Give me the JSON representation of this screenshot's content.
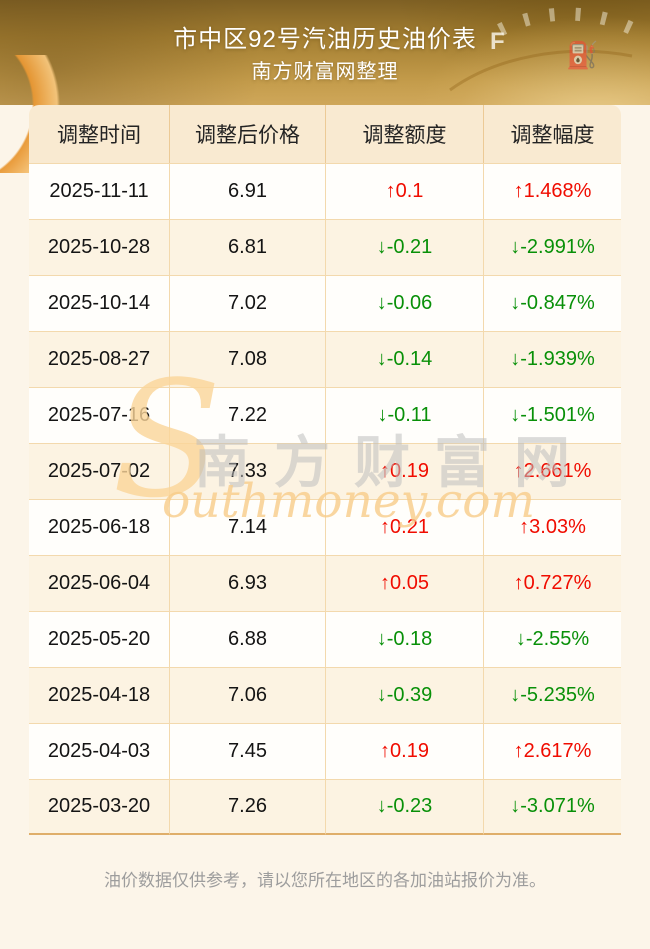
{
  "hero": {
    "title_line1": "市中区92号汽油历史油价表",
    "title_line2": "南方财富网整理",
    "gauge_letter": "F",
    "pump_icon": "⛽"
  },
  "table": {
    "columns": [
      "调整时间",
      "调整后价格",
      "调整额度",
      "调整幅度"
    ],
    "rows": [
      {
        "date": "2025-11-11",
        "price": "6.91",
        "change": "↑0.1",
        "pct": "↑1.468%",
        "direction": "up"
      },
      {
        "date": "2025-10-28",
        "price": "6.81",
        "change": "↓-0.21",
        "pct": "↓-2.991%",
        "direction": "down"
      },
      {
        "date": "2025-10-14",
        "price": "7.02",
        "change": "↓-0.06",
        "pct": "↓-0.847%",
        "direction": "down"
      },
      {
        "date": "2025-08-27",
        "price": "7.08",
        "change": "↓-0.14",
        "pct": "↓-1.939%",
        "direction": "down"
      },
      {
        "date": "2025-07-16",
        "price": "7.22",
        "change": "↓-0.11",
        "pct": "↓-1.501%",
        "direction": "down"
      },
      {
        "date": "2025-07-02",
        "price": "7.33",
        "change": "↑0.19",
        "pct": "↑2.661%",
        "direction": "up"
      },
      {
        "date": "2025-06-18",
        "price": "7.14",
        "change": "↑0.21",
        "pct": "↑3.03%",
        "direction": "up"
      },
      {
        "date": "2025-06-04",
        "price": "6.93",
        "change": "↑0.05",
        "pct": "↑0.727%",
        "direction": "up"
      },
      {
        "date": "2025-05-20",
        "price": "6.88",
        "change": "↓-0.18",
        "pct": "↓-2.55%",
        "direction": "down"
      },
      {
        "date": "2025-04-18",
        "price": "7.06",
        "change": "↓-0.39",
        "pct": "↓-5.235%",
        "direction": "down"
      },
      {
        "date": "2025-04-03",
        "price": "7.45",
        "change": "↑0.19",
        "pct": "↑2.617%",
        "direction": "up"
      },
      {
        "date": "2025-03-20",
        "price": "7.26",
        "change": "↓-0.23",
        "pct": "↓-3.071%",
        "direction": "down"
      }
    ]
  },
  "watermark": {
    "logo_s": "S",
    "site_name_cn": "南方财富网",
    "domain_en": "outhmoney.com"
  },
  "footer": {
    "note": "油价数据仅供参考，请以您所在地区的各加油站报价为准。"
  },
  "colors": {
    "up_red": "#f00c00",
    "down_green": "#089008",
    "banner_gold": "#c49c4b",
    "table_header_bg": "#f9ead1",
    "row_cream_bg": "#fcf3e2",
    "table_border": "#f3d9ad",
    "table_bottom_border": "#dfae6a",
    "page_bg": "#fcf5e9"
  }
}
